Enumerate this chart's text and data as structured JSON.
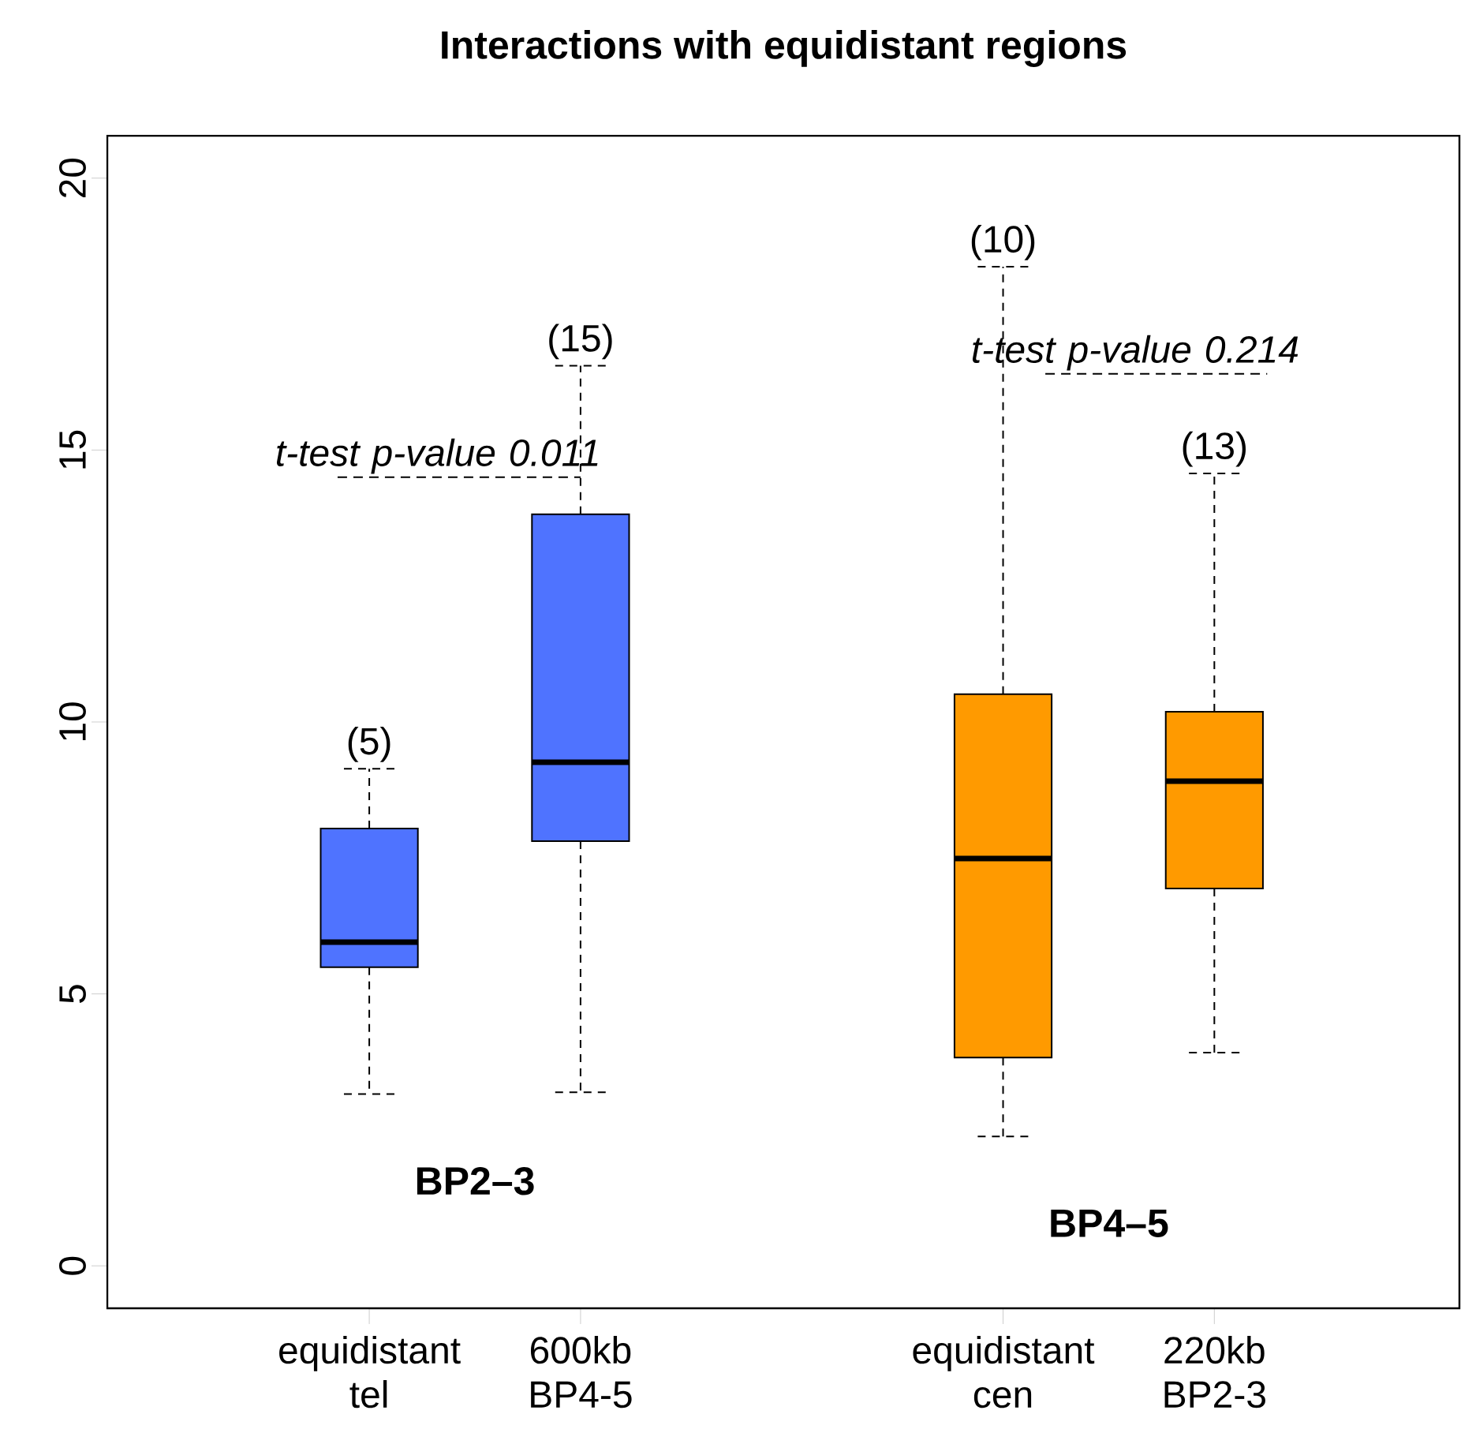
{
  "chart_data": {
    "type": "box",
    "title": "Interactions with equidistant regions",
    "categories": [
      "equidistant tel",
      "600kb BP4-5",
      "equidistant cen",
      "220kb BP2-3"
    ],
    "colors": [
      "#4f73ff",
      "#4f73ff",
      "#ff9a00",
      "#ff9a00"
    ],
    "boxes": [
      {
        "low": 3.16,
        "q1": 5.49,
        "median": 5.95,
        "q3": 8.04,
        "high": 9.14
      },
      {
        "low": 3.19,
        "q1": 7.81,
        "median": 9.26,
        "q3": 13.82,
        "high": 16.55
      },
      {
        "low": 2.38,
        "q1": 3.83,
        "median": 7.49,
        "q3": 10.51,
        "high": 18.37
      },
      {
        "low": 3.92,
        "q1": 6.94,
        "median": 8.91,
        "q3": 10.19,
        "high": 14.57
      }
    ],
    "ylim": [
      -0.78,
      20.78
    ],
    "yticks": [
      0,
      5,
      10,
      15,
      20
    ],
    "grid": false,
    "annotations": [
      "(5)",
      "(15)",
      "(10)",
      "(13)",
      "t-test  p-value 0.011",
      "t-test  p-value 0.214",
      "BP2–3",
      "BP4–5"
    ]
  }
}
